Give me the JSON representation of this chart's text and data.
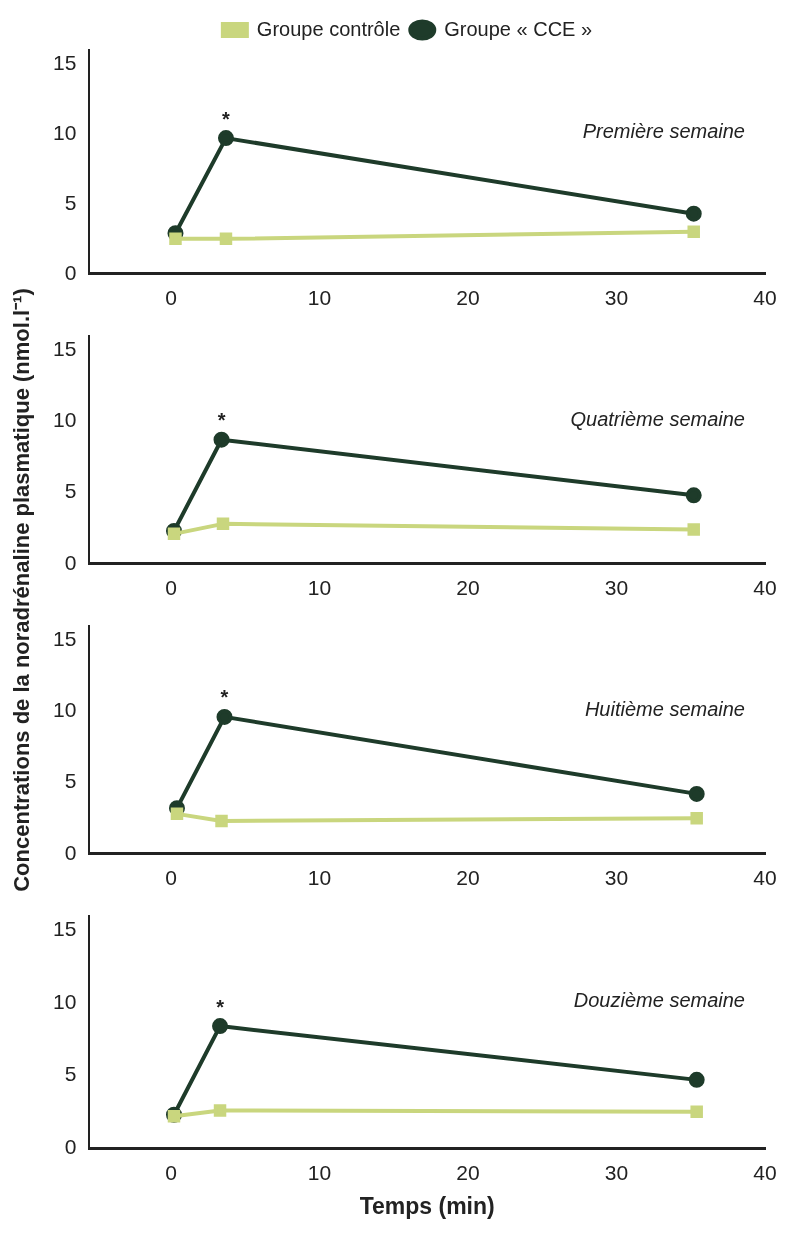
{
  "chart_data": [
    {
      "type": "line",
      "ylabel": "Concentrations de la noradrénaline plasmatique (nmol.l⁻¹)",
      "xlim": [
        -5.5,
        40
      ],
      "xticks": [
        0,
        10,
        20,
        30,
        40
      ],
      "ylim": [
        0,
        16
      ],
      "yticks": [
        0,
        5,
        10,
        15
      ],
      "grid": false,
      "legend": "top right",
      "annotations": [
        "Première semaine",
        {
          "text": "*",
          "x": 3.7,
          "y": 9.7
        }
      ],
      "series": [
        {
          "name": "Groupe « CCE »",
          "color": "#1e3b2a",
          "marker": "circle",
          "x": [
            0.3,
            3.7,
            35.2
          ],
          "values": [
            2.9,
            9.7,
            4.3
          ]
        },
        {
          "name": "Groupe contrôle",
          "color": "#c9d67e",
          "marker": "square",
          "x": [
            0.3,
            3.7,
            35.2
          ],
          "values": [
            2.5,
            2.5,
            3.0
          ]
        }
      ]
    },
    {
      "type": "line",
      "xlim": [
        -5.5,
        40
      ],
      "xticks": [
        0,
        10,
        20,
        30,
        40
      ],
      "ylim": [
        0,
        16
      ],
      "yticks": [
        0,
        5,
        10,
        15
      ],
      "grid": false,
      "annotations": [
        "Quatrième semaine",
        {
          "text": "*",
          "x": 3.4,
          "y": 8.7
        }
      ],
      "series": [
        {
          "color": "#1e3b2a",
          "marker": "circle",
          "x": [
            0.2,
            3.4,
            35.2
          ],
          "values": [
            2.3,
            8.7,
            4.8
          ]
        },
        {
          "color": "#c9d67e",
          "marker": "square",
          "x": [
            0.2,
            3.5,
            35.2
          ],
          "values": [
            2.1,
            2.8,
            2.4
          ]
        }
      ]
    },
    {
      "type": "line",
      "xlim": [
        -5.5,
        40
      ],
      "xticks": [
        0,
        10,
        20,
        30,
        40
      ],
      "ylim": [
        0,
        16
      ],
      "yticks": [
        0,
        5,
        10,
        15
      ],
      "grid": false,
      "annotations": [
        "Huitième semaine",
        {
          "text": "*",
          "x": 3.6,
          "y": 9.6
        }
      ],
      "series": [
        {
          "color": "#1e3b2a",
          "marker": "circle",
          "x": [
            0.4,
            3.6,
            35.4
          ],
          "values": [
            3.2,
            9.6,
            4.2
          ]
        },
        {
          "color": "#c9d67e",
          "marker": "square",
          "x": [
            0.4,
            3.4,
            35.4
          ],
          "values": [
            2.8,
            2.3,
            2.5
          ]
        }
      ]
    },
    {
      "type": "line",
      "xlabel": "Temps (min)",
      "xlim": [
        -5.5,
        40
      ],
      "xticks": [
        0,
        10,
        20,
        30,
        40
      ],
      "ylim": [
        0,
        16
      ],
      "yticks": [
        0,
        5,
        10,
        15
      ],
      "grid": false,
      "annotations": [
        "Douzième semaine",
        {
          "text": "*",
          "x": 3.3,
          "y": 8.4
        }
      ],
      "series": [
        {
          "color": "#1e3b2a",
          "marker": "circle",
          "x": [
            0.2,
            3.3,
            35.4
          ],
          "values": [
            2.3,
            8.4,
            4.7
          ]
        },
        {
          "color": "#c9d67e",
          "marker": "square",
          "x": [
            0.2,
            3.3,
            35.4
          ],
          "values": [
            2.2,
            2.6,
            2.5
          ]
        }
      ]
    }
  ]
}
